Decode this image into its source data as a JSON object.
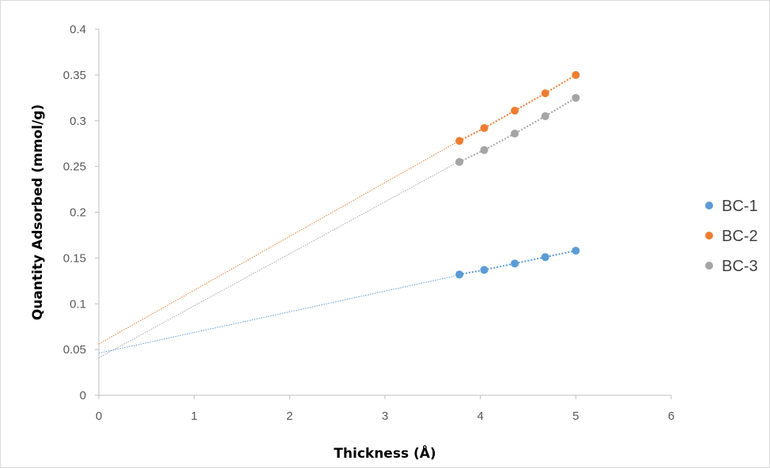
{
  "chart_data": {
    "type": "scatter",
    "title": "",
    "xlabel": "Thickness (Å)",
    "ylabel": "Quantity Adsorbed (mmol/g)",
    "xlim": [
      0,
      6
    ],
    "ylim": [
      0,
      0.4
    ],
    "x_ticks": [
      "0",
      "1",
      "2",
      "3",
      "4",
      "5",
      "6"
    ],
    "y_ticks": [
      "0",
      "0.05",
      "0.1",
      "0.15",
      "0.2",
      "0.25",
      "0.3",
      "0.35",
      "0.4"
    ],
    "grid": false,
    "legend_position": "right",
    "series": [
      {
        "name": "BC-1",
        "color": "#5b9bd5",
        "x": [
          3.78,
          4.04,
          4.36,
          4.68,
          5.0
        ],
        "y": [
          0.132,
          0.137,
          0.144,
          0.151,
          0.158
        ],
        "trendline": {
          "intercept": 0.046,
          "slope": 0.0226
        }
      },
      {
        "name": "BC-2",
        "color": "#ed7d31",
        "x": [
          3.78,
          4.04,
          4.36,
          4.68,
          5.0
        ],
        "y": [
          0.278,
          0.292,
          0.311,
          0.33,
          0.35
        ],
        "trendline": {
          "intercept": 0.056,
          "slope": 0.0588
        }
      },
      {
        "name": "BC-3",
        "color": "#a5a5a5",
        "x": [
          3.78,
          4.04,
          4.36,
          4.68,
          5.0
        ],
        "y": [
          0.255,
          0.268,
          0.286,
          0.305,
          0.325
        ],
        "trendline": {
          "intercept": 0.041,
          "slope": 0.0568
        }
      }
    ]
  }
}
